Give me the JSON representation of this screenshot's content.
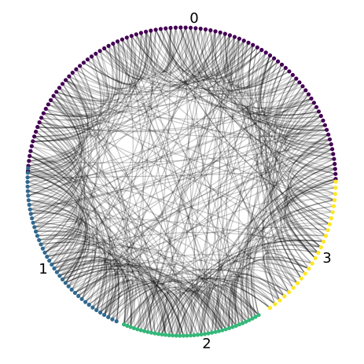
{
  "chart_data": {
    "type": "circular-graph",
    "title": "",
    "groups": [
      {
        "label": "0",
        "node_count": 95,
        "color": "#440154"
      },
      {
        "label": "1",
        "node_count": 42,
        "color": "#31688e"
      },
      {
        "label": "2",
        "node_count": 40,
        "color": "#35b779"
      },
      {
        "label": "3",
        "node_count": 25,
        "color": "#fde725"
      }
    ],
    "edge_color": "#000000",
    "edge_opacity": 0.22,
    "edges_per_node": 3
  }
}
